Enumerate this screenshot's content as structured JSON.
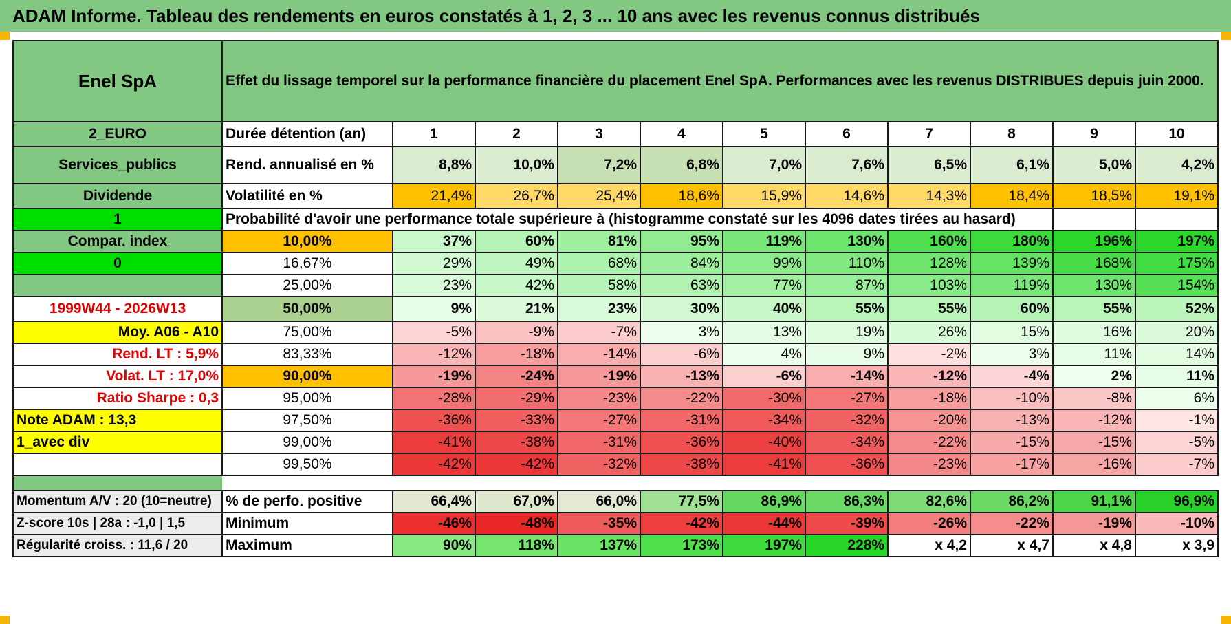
{
  "title": "ADAM Informe. Tableau des rendements en euros constatés à 1, 2, 3 ... 10 ans avec les revenus connus distribués",
  "header": {
    "asset_name": "Enel SpA",
    "description": "Effet du lissage temporel sur la performance financière du placement Enel SpA. Performances avec les revenus DISTRIBUES depuis juin 2000."
  },
  "left_labels": {
    "currency": "2_EURO",
    "sector": "Services_publics",
    "income_type": "Dividende",
    "flag1": "1",
    "compar_index": "Compar. index",
    "flag0": "0",
    "blank": "",
    "period": "1999W44 - 2026W13",
    "moy": "Moy. A06 - A10",
    "rend_lt": "Rend. LT :   5,9%",
    "volat_lt": "Volat. LT :   17,0%",
    "sharpe": "Ratio Sharpe :    0,3",
    "note": "Note ADAM : 13,3",
    "div": "1_avec div",
    "momentum": "Momentum A/V : 20 (10=neutre)",
    "zscore": "Z-score 10s | 28a : -1,0 | 1,5",
    "regularite": "Régularité croiss. : 11,6 / 20"
  },
  "years_row": {
    "label": "Durée détention (an)",
    "years": [
      "1",
      "2",
      "3",
      "4",
      "5",
      "6",
      "7",
      "8",
      "9",
      "10"
    ]
  },
  "rend_row": {
    "label": "Rend. annualisé en %",
    "values": [
      "8,8%",
      "10,0%",
      "7,2%",
      "6,8%",
      "7,0%",
      "7,6%",
      "6,5%",
      "6,1%",
      "5,0%",
      "4,2%"
    ]
  },
  "vol_row": {
    "label": "Volatilité en %",
    "values": [
      "21,4%",
      "26,7%",
      "25,4%",
      "18,6%",
      "15,9%",
      "14,6%",
      "14,3%",
      "18,4%",
      "18,5%",
      "19,1%"
    ]
  },
  "prob_title": "Probabilité d'avoir une performance totale supérieure à (histogramme constaté sur les 4096 dates tirées au hasard)",
  "prob_rows": [
    {
      "p": "10,00%",
      "values": [
        "37%",
        "60%",
        "81%",
        "95%",
        "119%",
        "130%",
        "160%",
        "180%",
        "196%",
        "197%"
      ]
    },
    {
      "p": "16,67%",
      "values": [
        "29%",
        "49%",
        "68%",
        "84%",
        "99%",
        "110%",
        "128%",
        "139%",
        "168%",
        "175%"
      ]
    },
    {
      "p": "25,00%",
      "values": [
        "23%",
        "42%",
        "58%",
        "63%",
        "77%",
        "87%",
        "103%",
        "119%",
        "130%",
        "154%"
      ]
    },
    {
      "p": "50,00%",
      "values": [
        "9%",
        "21%",
        "23%",
        "30%",
        "40%",
        "55%",
        "55%",
        "60%",
        "55%",
        "52%"
      ]
    },
    {
      "p": "75,00%",
      "values": [
        "-5%",
        "-9%",
        "-7%",
        "3%",
        "13%",
        "19%",
        "26%",
        "15%",
        "16%",
        "20%"
      ]
    },
    {
      "p": "83,33%",
      "values": [
        "-12%",
        "-18%",
        "-14%",
        "-6%",
        "4%",
        "9%",
        "-2%",
        "3%",
        "11%",
        "14%"
      ]
    },
    {
      "p": "90,00%",
      "values": [
        "-19%",
        "-24%",
        "-19%",
        "-13%",
        "-6%",
        "-14%",
        "-12%",
        "-4%",
        "2%",
        "11%"
      ]
    },
    {
      "p": "95,00%",
      "values": [
        "-28%",
        "-29%",
        "-23%",
        "-22%",
        "-30%",
        "-27%",
        "-18%",
        "-10%",
        "-8%",
        "6%"
      ]
    },
    {
      "p": "97,50%",
      "values": [
        "-36%",
        "-33%",
        "-27%",
        "-31%",
        "-34%",
        "-32%",
        "-20%",
        "-13%",
        "-12%",
        "-1%"
      ]
    },
    {
      "p": "99,00%",
      "values": [
        "-41%",
        "-38%",
        "-31%",
        "-36%",
        "-40%",
        "-34%",
        "-22%",
        "-15%",
        "-15%",
        "-5%"
      ]
    },
    {
      "p": "99,50%",
      "values": [
        "-42%",
        "-42%",
        "-32%",
        "-38%",
        "-41%",
        "-36%",
        "-23%",
        "-17%",
        "-16%",
        "-7%"
      ]
    }
  ],
  "stats_rows": [
    {
      "label": "% de perfo. positive",
      "values": [
        "66,4%",
        "67,0%",
        "66,0%",
        "77,5%",
        "86,9%",
        "86,3%",
        "82,6%",
        "86,2%",
        "91,1%",
        "96,9%"
      ]
    },
    {
      "label": "Minimum",
      "values": [
        "-46%",
        "-48%",
        "-35%",
        "-42%",
        "-44%",
        "-39%",
        "-26%",
        "-22%",
        "-19%",
        "-10%"
      ]
    },
    {
      "label": "Maximum",
      "values": [
        "90%",
        "118%",
        "137%",
        "173%",
        "197%",
        "228%",
        "x 4,2",
        "x 4,7",
        "x 4,8",
        "x 3,9"
      ]
    }
  ],
  "colors": {
    "header_green": "#82c882",
    "orange": "#ffc000",
    "yellow": "#ffff00",
    "bright_green": "#00e000",
    "label_red": "#e00000"
  }
}
